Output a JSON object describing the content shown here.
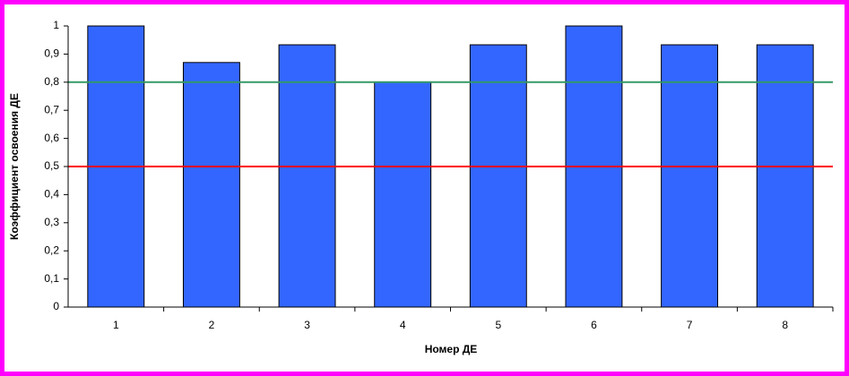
{
  "chart_data": {
    "type": "bar",
    "x_label": "Номер ДЕ",
    "y_label": "Коэффициент освоения ДЕ",
    "categories": [
      "1",
      "2",
      "3",
      "4",
      "5",
      "6",
      "7",
      "8"
    ],
    "values": [
      1,
      0.87,
      0.933,
      0.8,
      0.933,
      1,
      0.933,
      0.933
    ],
    "color": "#3366ff",
    "ylim": [
      0,
      1
    ],
    "yticks": [
      0,
      {
        "value": 0.1,
        "label": "0,1"
      },
      {
        "value": 0.2,
        "label": "0,2"
      },
      {
        "value": 0.3,
        "label": "0,3"
      },
      {
        "value": 0.4,
        "label": "0,4"
      },
      {
        "value": 0.5,
        "label": "0,5"
      },
      {
        "value": 0.6,
        "label": "0,6"
      },
      {
        "value": 0.7,
        "label": "0,7"
      },
      {
        "value": 0.8,
        "label": "0,8"
      },
      {
        "value": 0.9,
        "label": "0,9"
      },
      1
    ],
    "reference_lines": [
      {
        "value": 0.8,
        "color": "#339966"
      },
      {
        "value": 0.5,
        "color": "#ff0000"
      }
    ]
  }
}
